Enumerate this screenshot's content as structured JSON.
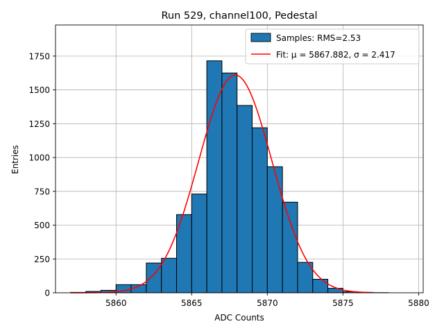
{
  "chart_data": {
    "type": "bar",
    "title": "Run 529, channel100, Pedestal",
    "xlabel": "ADC Counts",
    "ylabel": "Entries",
    "xlim": [
      5856.0,
      5880.3
    ],
    "ylim": [
      0,
      1980
    ],
    "xticks": [
      5860,
      5865,
      5870,
      5875,
      5880
    ],
    "yticks": [
      0,
      250,
      500,
      750,
      1000,
      1250,
      1500,
      1750
    ],
    "grid": true,
    "legend_position": "top-right",
    "histogram": {
      "name": "Samples: RMS=2.53",
      "bin_width": 1,
      "bin_edges_start": [
        5857,
        5858,
        5859,
        5860,
        5861,
        5862,
        5863,
        5864,
        5865,
        5866,
        5867,
        5868,
        5869,
        5870,
        5871,
        5872,
        5873,
        5874,
        5875,
        5876,
        5877,
        5878
      ],
      "values": [
        3,
        10,
        18,
        60,
        60,
        220,
        255,
        578,
        730,
        1715,
        1625,
        1385,
        1220,
        932,
        670,
        225,
        100,
        33,
        8,
        3,
        1,
        0
      ],
      "color": "#1f77b4",
      "edge_color": "#000000"
    },
    "fit": {
      "name": "Fit: μ = 5867.882, σ = 2.417",
      "mu": 5867.882,
      "sigma": 2.417,
      "amplitude": 1610,
      "x_range": [
        5857,
        5877
      ],
      "color": "#ff0000"
    }
  }
}
